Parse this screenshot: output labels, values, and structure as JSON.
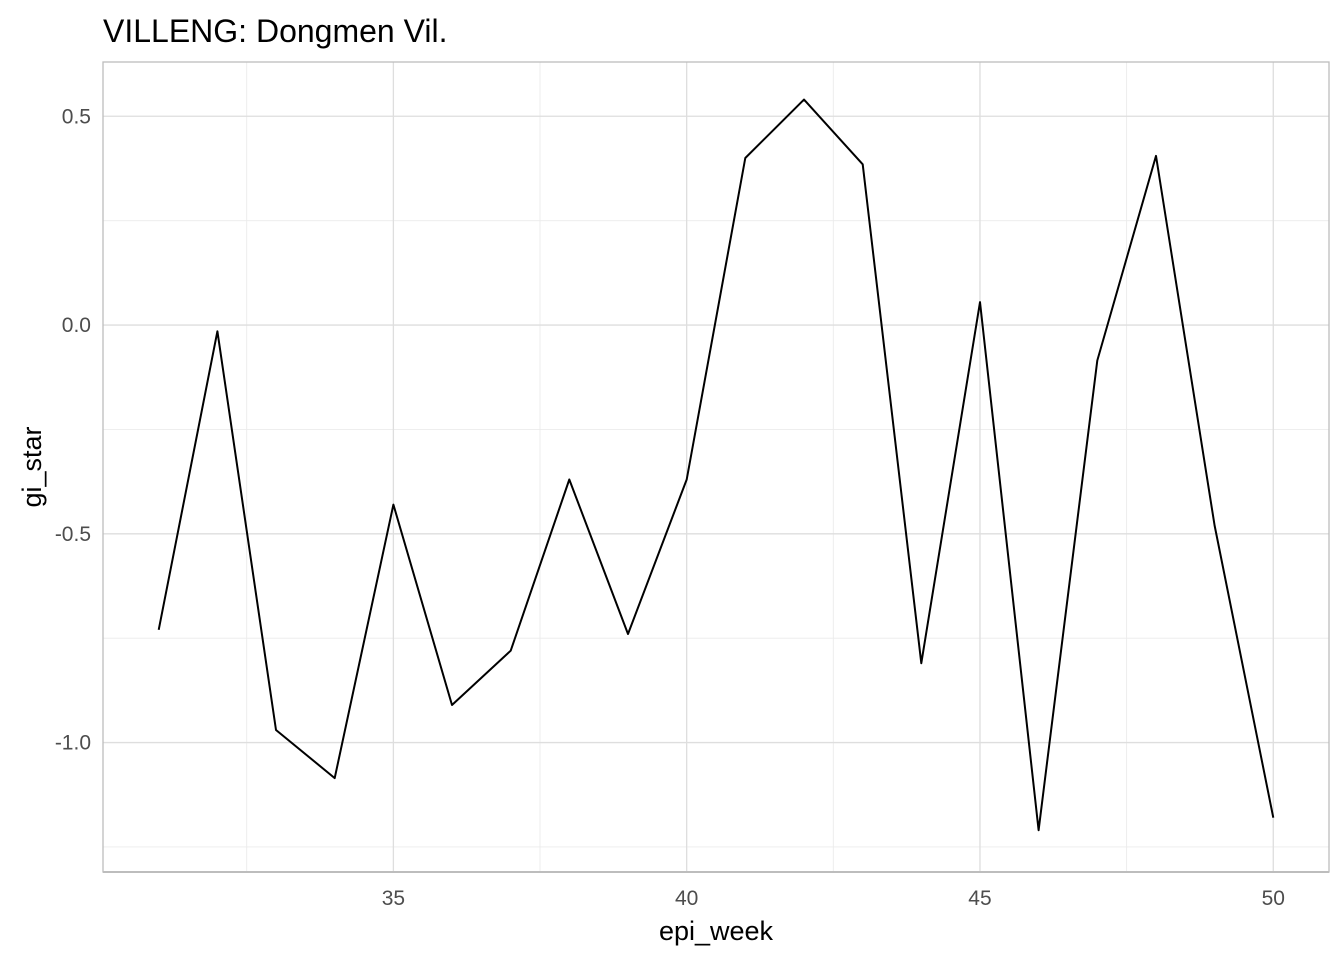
{
  "chart_data": {
    "type": "line",
    "title": "VILLENG: Dongmen Vil.",
    "xlabel": "epi_week",
    "ylabel": "gi_star",
    "xlim": [
      30.05,
      50.95
    ],
    "ylim": [
      -1.31,
      0.63
    ],
    "x_ticks": [
      35,
      40,
      45,
      50
    ],
    "x_tick_labels": [
      "35",
      "40",
      "45",
      "50"
    ],
    "x_minor_ticks": [
      32.5,
      37.5,
      42.5,
      47.5
    ],
    "y_ticks": [
      0.5,
      0.0,
      -0.5,
      -1.0
    ],
    "y_tick_labels": [
      "0.5",
      "0.0",
      "-0.5",
      "-1.0"
    ],
    "y_minor_ticks": [
      0.25,
      -0.25,
      -0.75,
      -1.25
    ],
    "grid": true,
    "line_color": "#000000",
    "series": [
      {
        "x": [
          31,
          32,
          33,
          34,
          35,
          36,
          37,
          38,
          39,
          40,
          41,
          42,
          43,
          44,
          45,
          46,
          47,
          48,
          49,
          50
        ],
        "values": [
          -0.73,
          -0.015,
          -0.97,
          -1.085,
          -0.43,
          -0.91,
          -0.78,
          -0.37,
          -0.74,
          -0.37,
          0.4,
          0.54,
          0.385,
          -0.81,
          0.055,
          -1.21,
          -0.085,
          0.405,
          -0.48,
          -1.18
        ]
      }
    ]
  }
}
